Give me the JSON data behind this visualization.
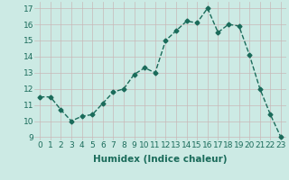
{
  "x": [
    0,
    1,
    2,
    3,
    4,
    5,
    6,
    7,
    8,
    9,
    10,
    11,
    12,
    13,
    14,
    15,
    16,
    17,
    18,
    19,
    20,
    21,
    22,
    23
  ],
  "y": [
    11.5,
    11.5,
    10.7,
    10.0,
    10.3,
    10.4,
    11.1,
    11.8,
    12.0,
    12.9,
    13.3,
    13.0,
    15.0,
    15.6,
    16.2,
    16.1,
    17.0,
    15.5,
    16.0,
    15.9,
    14.1,
    12.0,
    10.4,
    9.0
  ],
  "line_color": "#1a6b5a",
  "marker": "D",
  "marker_size": 2.5,
  "bg_color": "#cceae4",
  "grid_color": "#c8b8b8",
  "xlabel": "Humidex (Indice chaleur)",
  "ylim": [
    8.8,
    17.4
  ],
  "xlim": [
    -0.5,
    23.5
  ],
  "yticks": [
    9,
    10,
    11,
    12,
    13,
    14,
    15,
    16,
    17
  ],
  "xticks": [
    0,
    1,
    2,
    3,
    4,
    5,
    6,
    7,
    8,
    9,
    10,
    11,
    12,
    13,
    14,
    15,
    16,
    17,
    18,
    19,
    20,
    21,
    22,
    23
  ],
  "tick_label_fontsize": 6.5,
  "xlabel_fontsize": 7.5,
  "linewidth": 1.0,
  "tick_color": "#1a6b5a",
  "label_color": "#1a6b5a"
}
